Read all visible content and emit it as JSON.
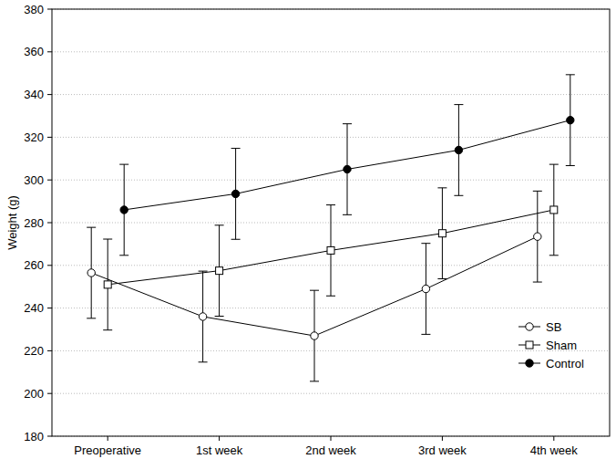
{
  "chart_data": {
    "type": "line",
    "y_label": "Weight (g)",
    "categories": [
      "Preoperative",
      "1st week",
      "2nd week",
      "3rd week",
      "4th week"
    ],
    "series": [
      {
        "name": "SB",
        "color": "#000000",
        "marker": "open_circle",
        "line_style": "solid",
        "values": [
          256.5,
          236,
          227,
          249,
          273.5
        ],
        "errors": [
          21.3,
          21.3,
          21.3,
          21.3,
          21.3
        ]
      },
      {
        "name": "Sham",
        "color": "#000000",
        "marker": "open_square",
        "line_style": "solid",
        "values": [
          251,
          257.5,
          267,
          275,
          286
        ],
        "errors": [
          21.3,
          21.3,
          21.3,
          21.3,
          21.3
        ]
      },
      {
        "name": "Control",
        "color": "#000000",
        "marker": "filled_circle",
        "line_style": "solid",
        "values": [
          286,
          293.5,
          305,
          314,
          328
        ],
        "errors": [
          21.3,
          21.3,
          21.3,
          21.3,
          21.3
        ]
      }
    ],
    "ylim": [
      180,
      380
    ],
    "yticks": [
      180,
      200,
      220,
      240,
      260,
      280,
      300,
      320,
      340,
      360,
      380
    ],
    "grid": true,
    "legend": "lower right"
  }
}
